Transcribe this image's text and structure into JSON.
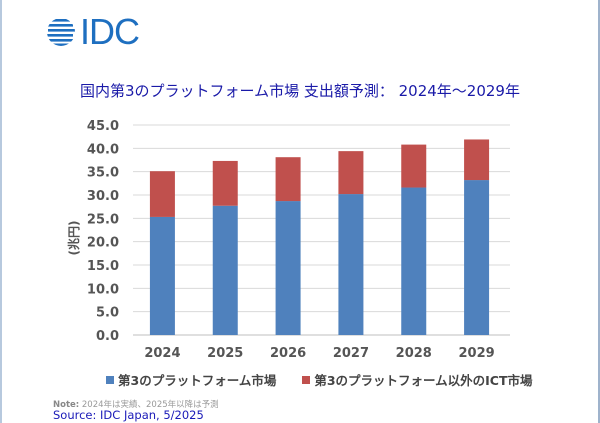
{
  "logo": {
    "text": "IDC",
    "icon": "globe-icon",
    "color": "#1e6fc0"
  },
  "chart_data": {
    "type": "bar",
    "stacked": true,
    "title": "国内第3のプラットフォーム市場 支出額予測： 2024年～2029年",
    "xlabel": "",
    "ylabel": "(兆円)",
    "ylim": [
      0,
      45
    ],
    "yticks": [
      "0.0",
      "5.0",
      "10.0",
      "15.0",
      "20.0",
      "25.0",
      "30.0",
      "35.0",
      "40.0",
      "45.0"
    ],
    "ytick_step": 5,
    "grid": true,
    "legend_position": "bottom",
    "categories": [
      "2024",
      "2025",
      "2026",
      "2027",
      "2028",
      "2029"
    ],
    "series": [
      {
        "name": "第3のプラットフォーム市場",
        "color": "#4f81bd",
        "values": [
          25.3,
          27.7,
          28.7,
          30.2,
          31.6,
          33.2
        ]
      },
      {
        "name": "第3のプラットフォーム以外のICT市場",
        "color": "#c0504d",
        "values": [
          9.8,
          9.6,
          9.4,
          9.2,
          9.2,
          8.7
        ]
      }
    ]
  },
  "footer": {
    "note_label": "Note:",
    "note_text": " 2024年は実績、2025年以降は予測",
    "source": "Source: IDC Japan, 5/2025"
  },
  "colors": {
    "title": "#1a1aa8",
    "grid": "#d9d9d9",
    "axis_text": "#555555"
  }
}
